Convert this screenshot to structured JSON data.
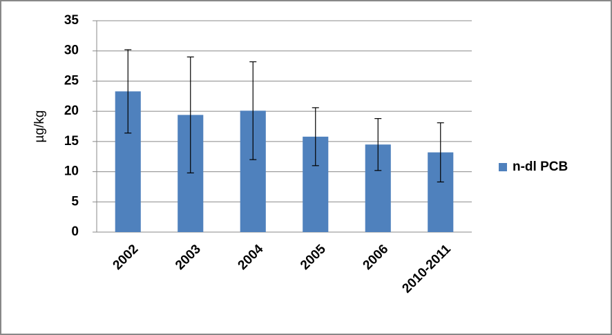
{
  "chart_data": {
    "type": "bar",
    "y_label": "µg/kg",
    "categories": [
      "2002",
      "2003",
      "2004",
      "2005",
      "2006",
      "2010-2011"
    ],
    "series": [
      {
        "name": "n-dl PCB",
        "color": "#4f81bd",
        "values": [
          23.3,
          19.4,
          20.1,
          15.8,
          14.5,
          13.2
        ],
        "errors": [
          6.9,
          9.6,
          8.1,
          4.8,
          4.3,
          4.9
        ]
      }
    ],
    "ylim": [
      0,
      35
    ],
    "yticks": [
      0,
      5,
      10,
      15,
      20,
      25,
      30,
      35
    ],
    "grid": true,
    "legend": "right"
  }
}
